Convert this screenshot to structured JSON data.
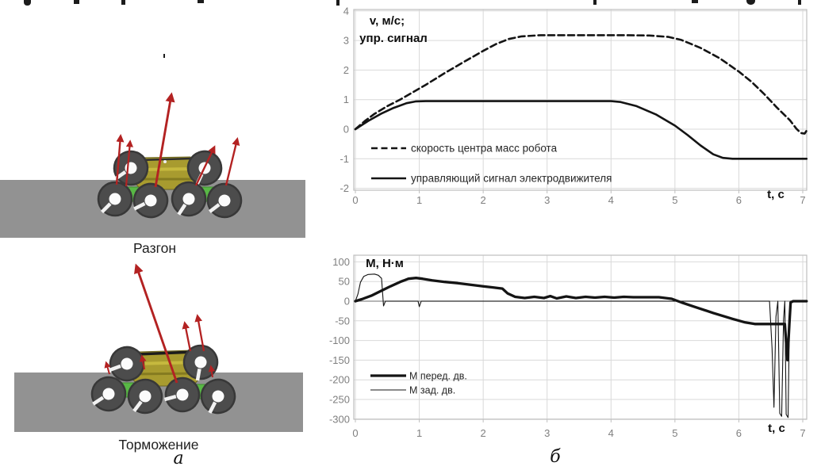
{
  "page": {
    "panel_a_label": "а",
    "panel_b_label": "б"
  },
  "left_panel": {
    "acceleration_caption": "Разгон",
    "braking_caption": "Торможение"
  },
  "colors": {
    "arrow_red": "#b32222",
    "wheel_gray": "#4c4c4c",
    "body_olive": "#a89b2f",
    "connector_green": "#58b845",
    "ground_gray": "#929292",
    "grid_light": "#d9d9d9",
    "zero_axis_gray": "#8a8a8a",
    "tick_label_gray": "#7f7f7f",
    "series_black": "#141414"
  },
  "chart_data": [
    {
      "id": "velocity-chart",
      "type": "line",
      "title_lines": [
        "v, м/с;",
        "упр. сигнал"
      ],
      "xlabel": "t, с",
      "xlim": [
        0,
        7.07
      ],
      "ylim": [
        -2.07,
        4.12
      ],
      "xticks": [
        0,
        1,
        2,
        3,
        4,
        5,
        6,
        7
      ],
      "yticks": [
        4,
        3,
        2,
        1,
        0,
        -1,
        -2
      ],
      "grid": true,
      "legend_position": "inside-bottom-left",
      "series": [
        {
          "name": "скорость центра масс робота",
          "style": "dashed",
          "width": 2.6,
          "points": [
            [
              0,
              0
            ],
            [
              0.15,
              0.28
            ],
            [
              0.3,
              0.52
            ],
            [
              0.5,
              0.78
            ],
            [
              0.7,
              1.0
            ],
            [
              0.9,
              1.25
            ],
            [
              1.1,
              1.5
            ],
            [
              1.4,
              1.9
            ],
            [
              1.7,
              2.28
            ],
            [
              2.0,
              2.65
            ],
            [
              2.2,
              2.88
            ],
            [
              2.4,
              3.05
            ],
            [
              2.6,
              3.14
            ],
            [
              2.9,
              3.18
            ],
            [
              3.5,
              3.18
            ],
            [
              4.2,
              3.18
            ],
            [
              4.6,
              3.17
            ],
            [
              4.9,
              3.12
            ],
            [
              5.1,
              3.02
            ],
            [
              5.4,
              2.75
            ],
            [
              5.7,
              2.4
            ],
            [
              6.0,
              1.95
            ],
            [
              6.2,
              1.6
            ],
            [
              6.4,
              1.18
            ],
            [
              6.6,
              0.72
            ],
            [
              6.8,
              0.3
            ],
            [
              6.9,
              0.02
            ],
            [
              6.97,
              -0.13
            ],
            [
              7.03,
              -0.15
            ],
            [
              7.06,
              -0.05
            ]
          ]
        },
        {
          "name": "управляющий сигнал электродвижителя",
          "style": "solid",
          "width": 2.6,
          "points": [
            [
              0,
              0
            ],
            [
              0.2,
              0.28
            ],
            [
              0.4,
              0.52
            ],
            [
              0.6,
              0.72
            ],
            [
              0.8,
              0.88
            ],
            [
              0.95,
              0.94
            ],
            [
              1.1,
              0.95
            ],
            [
              2.0,
              0.95
            ],
            [
              3.0,
              0.95
            ],
            [
              4.0,
              0.95
            ],
            [
              4.15,
              0.92
            ],
            [
              4.4,
              0.78
            ],
            [
              4.7,
              0.5
            ],
            [
              5.0,
              0.12
            ],
            [
              5.2,
              -0.2
            ],
            [
              5.4,
              -0.55
            ],
            [
              5.6,
              -0.85
            ],
            [
              5.75,
              -0.97
            ],
            [
              5.9,
              -1.0
            ],
            [
              6.5,
              -1.0
            ],
            [
              7.06,
              -1.0
            ]
          ]
        }
      ]
    },
    {
      "id": "torque-chart",
      "type": "line",
      "title_lines": [
        "М, Н·м"
      ],
      "xlabel": "t, с",
      "xlim": [
        0,
        7.07
      ],
      "ylim": [
        -300,
        112
      ],
      "xticks": [
        0,
        1,
        2,
        3,
        4,
        5,
        6,
        7
      ],
      "yticks": [
        100,
        50,
        0,
        -50,
        -100,
        -150,
        -200,
        -250,
        -300
      ],
      "grid": true,
      "zero_axis": "dark",
      "legend_position": "inside-middle-left",
      "series": [
        {
          "name": "М перед. дв.",
          "style": "solid",
          "width": 3.3,
          "points": [
            [
              0,
              0
            ],
            [
              0.1,
              5
            ],
            [
              0.25,
              14
            ],
            [
              0.4,
              26
            ],
            [
              0.55,
              38
            ],
            [
              0.7,
              49
            ],
            [
              0.83,
              57
            ],
            [
              0.95,
              59
            ],
            [
              1.05,
              57
            ],
            [
              1.2,
              53
            ],
            [
              1.4,
              49
            ],
            [
              1.6,
              46
            ],
            [
              1.8,
              42
            ],
            [
              2.0,
              38
            ],
            [
              2.15,
              35
            ],
            [
              2.3,
              32
            ],
            [
              2.38,
              20
            ],
            [
              2.5,
              11
            ],
            [
              2.65,
              8
            ],
            [
              2.8,
              11
            ],
            [
              2.95,
              8
            ],
            [
              3.05,
              13
            ],
            [
              3.15,
              7
            ],
            [
              3.3,
              12
            ],
            [
              3.45,
              8
            ],
            [
              3.6,
              11
            ],
            [
              3.75,
              9
            ],
            [
              3.9,
              11
            ],
            [
              4.05,
              9
            ],
            [
              4.2,
              11
            ],
            [
              4.35,
              10
            ],
            [
              4.55,
              10
            ],
            [
              4.75,
              10
            ],
            [
              4.95,
              6
            ],
            [
              5.1,
              -3
            ],
            [
              5.3,
              -14
            ],
            [
              5.6,
              -30
            ],
            [
              5.9,
              -45
            ],
            [
              6.1,
              -54
            ],
            [
              6.25,
              -58
            ],
            [
              6.5,
              -58
            ],
            [
              6.72,
              -58
            ],
            [
              6.76,
              -150
            ],
            [
              6.79,
              -58
            ],
            [
              6.81,
              -3
            ],
            [
              6.85,
              0
            ],
            [
              7.06,
              0
            ]
          ]
        },
        {
          "name": "М зад. дв.",
          "style": "solid",
          "width": 1.1,
          "points": [
            [
              0,
              0
            ],
            [
              0.04,
              18
            ],
            [
              0.08,
              48
            ],
            [
              0.13,
              63
            ],
            [
              0.2,
              68
            ],
            [
              0.3,
              69
            ],
            [
              0.36,
              66
            ],
            [
              0.41,
              58
            ],
            [
              0.44,
              -12
            ],
            [
              0.47,
              0
            ],
            [
              0.98,
              0
            ],
            [
              1.0,
              -14
            ],
            [
              1.03,
              0
            ],
            [
              6.48,
              0
            ],
            [
              6.52,
              -120
            ],
            [
              6.55,
              -270
            ],
            [
              6.58,
              -40
            ],
            [
              6.61,
              0
            ],
            [
              6.64,
              -285
            ],
            [
              6.67,
              -293
            ],
            [
              6.7,
              -45
            ],
            [
              6.72,
              0
            ],
            [
              6.74,
              -288
            ],
            [
              6.77,
              -296
            ],
            [
              6.79,
              -70
            ],
            [
              6.81,
              0
            ],
            [
              7.06,
              0
            ]
          ]
        }
      ]
    }
  ]
}
